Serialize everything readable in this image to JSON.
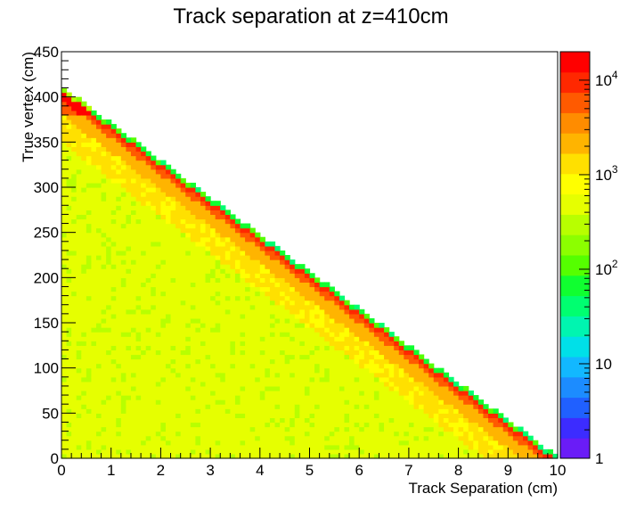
{
  "chart_data": {
    "type": "heatmap",
    "title": "Track separation at z=410cm",
    "xlabel": "Track Separation (cm)",
    "ylabel": "True vertex (cm)",
    "xlim": [
      0,
      10
    ],
    "ylim": [
      0,
      450
    ],
    "x_ticks": [
      "0",
      "1",
      "2",
      "3",
      "4",
      "5",
      "6",
      "7",
      "8",
      "9",
      "10"
    ],
    "y_ticks": [
      "0",
      "50",
      "100",
      "150",
      "200",
      "250",
      "300",
      "350",
      "400",
      "450"
    ],
    "z_scale": "log",
    "zlim": [
      1,
      20000
    ],
    "colorbar_ticks": [
      {
        "label": "1",
        "value": 1
      },
      {
        "label": "10",
        "value": 10
      },
      {
        "label": "10",
        "exp": "2",
        "value": 100
      },
      {
        "label": "10",
        "exp": "3",
        "value": 1000
      },
      {
        "label": "10",
        "exp": "4",
        "value": 10000
      }
    ],
    "band_edge": {
      "x0": 0,
      "y0": 410,
      "x1": 10,
      "y1": 0
    },
    "description_regions": {
      "diagonal_band_counts": 10000,
      "near_band_counts": 2000,
      "bulk_counts": 500
    },
    "colors": {
      "palette": [
        "#6a1cf7",
        "#3c2cff",
        "#2060ff",
        "#1c8cff",
        "#12b8ff",
        "#00e0e8",
        "#00f5b0",
        "#00ff70",
        "#10ff30",
        "#55ff00",
        "#8cff00",
        "#b8ff00",
        "#e6ff00",
        "#ffff00",
        "#ffe000",
        "#ffb400",
        "#ff8c00",
        "#ff5a00",
        "#ff2800",
        "#ff0000"
      ]
    }
  }
}
